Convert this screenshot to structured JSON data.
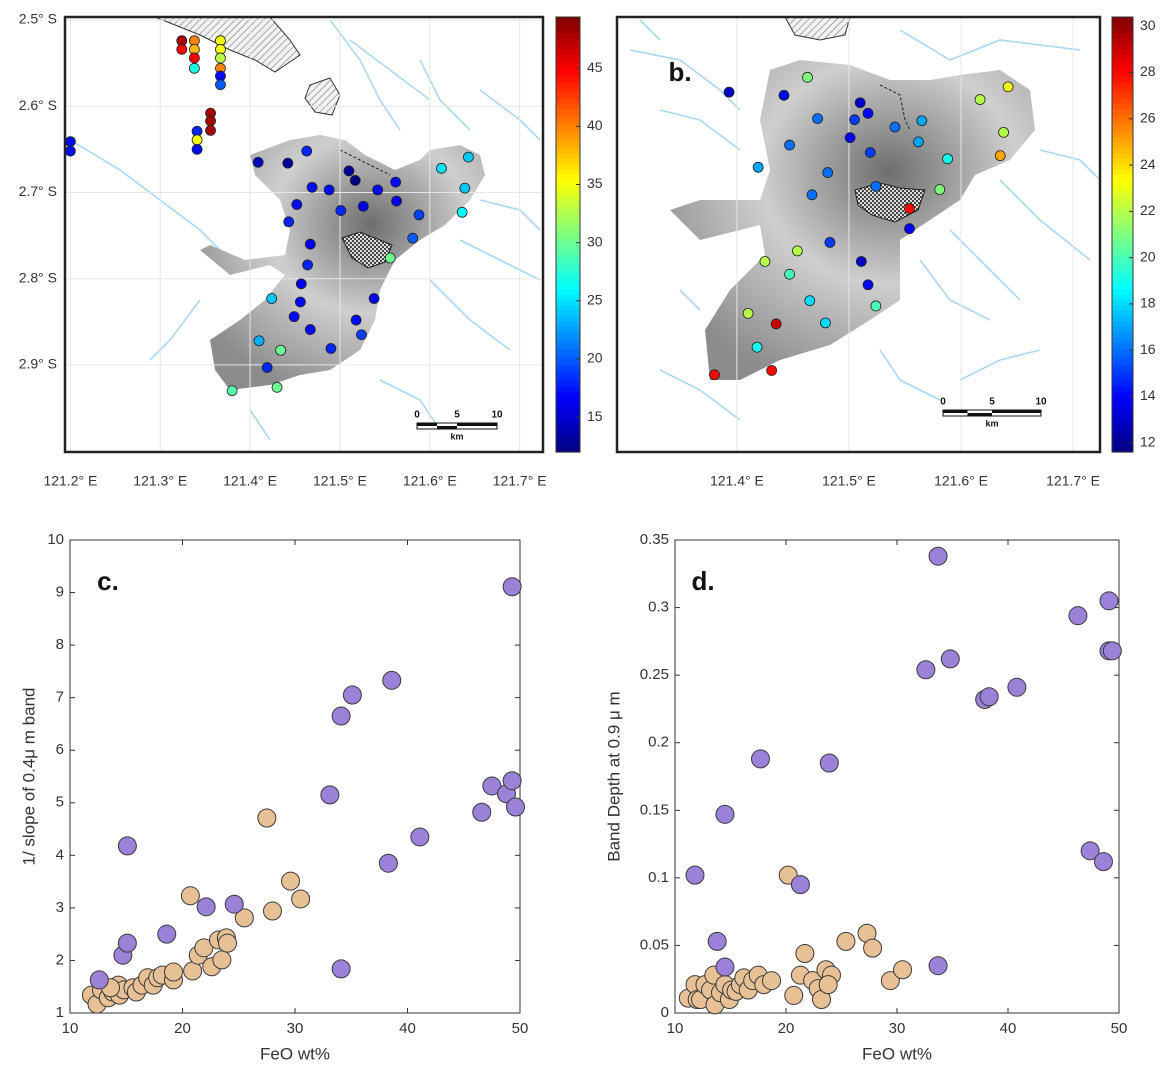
{
  "chart_data": [
    {
      "type": "map",
      "colormap": "jet",
      "grid": true,
      "xlim": [
        121.194,
        121.726
      ],
      "ylim": [
        -3.001,
        -2.4965
      ],
      "xticks": [
        {
          "value": 121.2,
          "label": "121.2° E"
        },
        {
          "value": 121.3,
          "label": "121.3° E"
        },
        {
          "value": 121.4,
          "label": "121.4° E"
        },
        {
          "value": 121.5,
          "label": "121.5° E"
        },
        {
          "value": 121.6,
          "label": "121.6° E"
        },
        {
          "value": 121.7,
          "label": "121.7° E"
        }
      ],
      "yticks": [
        {
          "value": -2.5,
          "label": "2.5° S"
        },
        {
          "value": -2.6,
          "label": "2.6° S"
        },
        {
          "value": -2.7,
          "label": "2.7° S"
        },
        {
          "value": -2.8,
          "label": "2.8° S"
        },
        {
          "value": -2.9,
          "label": "2.9° S"
        }
      ],
      "clim": [
        12,
        49.4
      ],
      "cticks": [
        15,
        20,
        25,
        30,
        35,
        40,
        45
      ],
      "scale_bar": {
        "ticks": [
          0,
          5,
          10
        ],
        "unit": "km"
      },
      "x": [
        121.324,
        121.324,
        121.338,
        121.338,
        121.338,
        121.338,
        121.367,
        121.367,
        121.367,
        121.367,
        121.367,
        121.367,
        121.356,
        121.356,
        121.356,
        121.341,
        121.341,
        121.341,
        121.2,
        121.2,
        121.409,
        121.442,
        121.463,
        121.51,
        121.517,
        121.542,
        121.562,
        121.563,
        121.613,
        121.643,
        121.639,
        121.636,
        121.588,
        121.581,
        121.556,
        121.526,
        121.501,
        121.488,
        121.469,
        121.452,
        121.443,
        121.467,
        121.464,
        121.457,
        121.424,
        121.456,
        121.449,
        121.518,
        121.538,
        121.524,
        121.467,
        121.49,
        121.41,
        121.434,
        121.419,
        121.43,
        121.38
      ],
      "y": [
        -2.524,
        -2.534,
        -2.524,
        -2.534,
        -2.544,
        -2.556,
        -2.524,
        -2.534,
        -2.544,
        -2.556,
        -2.565,
        -2.575,
        -2.608,
        -2.617,
        -2.628,
        -2.629,
        -2.639,
        -2.65,
        -2.641,
        -2.652,
        -2.665,
        -2.666,
        -2.652,
        -2.675,
        -2.686,
        -2.697,
        -2.688,
        -2.71,
        -2.672,
        -2.659,
        -2.695,
        -2.723,
        -2.726,
        -2.753,
        -2.776,
        -2.716,
        -2.721,
        -2.697,
        -2.694,
        -2.714,
        -2.734,
        -2.76,
        -2.784,
        -2.806,
        -2.823,
        -2.827,
        -2.844,
        -2.848,
        -2.823,
        -2.865,
        -2.859,
        -2.881,
        -2.872,
        -2.883,
        -2.903,
        -2.926,
        -2.93
      ],
      "values": [
        48,
        45,
        40,
        38,
        45,
        27,
        35,
        35,
        33,
        40,
        17,
        20,
        48,
        48,
        48,
        18,
        35,
        17,
        17,
        17,
        14,
        13,
        18,
        13,
        12,
        17,
        17,
        16,
        25,
        24,
        24,
        26,
        19,
        20,
        30,
        16,
        18,
        17,
        17,
        17,
        18,
        16,
        18,
        16,
        24,
        17,
        17,
        17,
        16,
        19,
        17,
        18,
        23,
        30,
        18,
        30,
        29
      ]
    },
    {
      "type": "map",
      "colormap": "jet",
      "grid": true,
      "panel_label": "b.",
      "xlim": [
        121.293,
        121.724
      ],
      "ylim": [
        -3.006,
        -2.595
      ],
      "xticks": [
        {
          "value": 121.4,
          "label": "121.4° E"
        },
        {
          "value": 121.5,
          "label": "121.5° E"
        },
        {
          "value": 121.6,
          "label": "121.6° E"
        },
        {
          "value": 121.7,
          "label": "121.7° E"
        }
      ],
      "clim": [
        11.6,
        30.4
      ],
      "cticks": [
        12,
        14,
        16,
        18,
        20,
        22,
        24,
        26,
        28,
        30
      ],
      "scale_bar": {
        "ticks": [
          0,
          5,
          10
        ],
        "unit": "km"
      },
      "x": [
        121.393,
        121.442,
        121.463,
        121.447,
        121.472,
        121.51,
        121.517,
        121.505,
        121.501,
        121.519,
        121.541,
        121.565,
        121.562,
        121.588,
        121.617,
        121.642,
        121.638,
        121.635,
        121.581,
        121.554,
        121.554,
        121.524,
        121.481,
        121.467,
        121.419,
        121.483,
        121.454,
        121.425,
        121.447,
        121.511,
        121.517,
        121.524,
        121.465,
        121.479,
        121.435,
        121.41,
        121.418,
        121.431,
        121.38
      ],
      "y": [
        -2.666,
        -2.669,
        -2.652,
        -2.716,
        -2.691,
        -2.676,
        -2.686,
        -2.692,
        -2.709,
        -2.723,
        -2.699,
        -2.693,
        -2.713,
        -2.729,
        -2.673,
        -2.661,
        -2.704,
        -2.726,
        -2.758,
        -2.776,
        -2.795,
        -2.755,
        -2.742,
        -2.763,
        -2.737,
        -2.808,
        -2.816,
        -2.826,
        -2.838,
        -2.826,
        -2.848,
        -2.868,
        -2.863,
        -2.884,
        -2.885,
        -2.875,
        -2.907,
        -2.929,
        -2.933
      ],
      "values": [
        13,
        14,
        21,
        16,
        16,
        13,
        14,
        15,
        14,
        15,
        16,
        17,
        17,
        19,
        22,
        23,
        22,
        25,
        21,
        28,
        14,
        16,
        16,
        16,
        17,
        15,
        22,
        22,
        20,
        13,
        14,
        20,
        18,
        18,
        29,
        22,
        19,
        28,
        28
      ]
    },
    {
      "type": "scatter",
      "panel_label": "c.",
      "xlabel": "FeO wt%",
      "ylabel": "1/ slope of 0.4μ m band",
      "xlim": [
        10,
        50
      ],
      "ylim": [
        1,
        10
      ],
      "xticks": [
        10,
        20,
        30,
        40,
        50
      ],
      "yticks": [
        1,
        2,
        3,
        4,
        5,
        6,
        7,
        8,
        9,
        10
      ],
      "series": [
        {
          "color": "#e8c096",
          "x": [
            11.9,
            12.4,
            12.8,
            13.4,
            13.8,
            14.3,
            14.4,
            14.8,
            15.6,
            15.9,
            16.4,
            16.9,
            17.4,
            17.8,
            18.2,
            19.2,
            19.2,
            20.7,
            20.9,
            21.4,
            21.9,
            22.6,
            23.2,
            23.5,
            23.9,
            24,
            25.5,
            27.5,
            28,
            29.6,
            30.5,
            13.6
          ],
          "y": [
            1.34,
            1.17,
            1.44,
            1.29,
            1.4,
            1.53,
            1.34,
            1.44,
            1.48,
            1.4,
            1.53,
            1.67,
            1.53,
            1.67,
            1.72,
            1.63,
            1.78,
            3.23,
            1.8,
            2.1,
            2.24,
            1.88,
            2.39,
            2.01,
            2.43,
            2.33,
            2.81,
            4.71,
            2.94,
            3.51,
            3.17,
            1.48
          ]
        },
        {
          "color": "#9b82d8",
          "x": [
            12.6,
            14.7,
            15.1,
            15.1,
            18.6,
            22.1,
            24.6,
            33.1,
            34.1,
            35.1,
            38.6,
            38.3,
            41.1,
            34.1,
            46.6,
            47.5,
            48.8,
            49.3,
            49.6,
            49.3
          ],
          "y": [
            1.63,
            2.1,
            2.33,
            4.18,
            2.5,
            3.02,
            3.07,
            5.15,
            6.65,
            7.05,
            7.33,
            3.85,
            4.35,
            1.84,
            4.82,
            5.32,
            5.17,
            5.42,
            4.92,
            9.11
          ]
        }
      ]
    },
    {
      "type": "scatter",
      "panel_label": "d.",
      "xlabel": "FeO wt%",
      "ylabel": "Band Depth at 0.9 μ m",
      "xlim": [
        10,
        50
      ],
      "ylim": [
        0,
        0.35
      ],
      "xticks": [
        10,
        20,
        30,
        40,
        50
      ],
      "yticks": [
        0,
        0.05,
        0.1,
        0.15,
        0.2,
        0.25,
        0.3,
        0.35
      ],
      "series": [
        {
          "color": "#e8c096",
          "x": [
            11.2,
            11.8,
            12.0,
            12.3,
            12.7,
            13.2,
            13.5,
            13.6,
            14.1,
            14.5,
            14.9,
            15.1,
            15.5,
            15.9,
            16.2,
            16.6,
            17.0,
            17.5,
            18.0,
            18.7,
            20.2,
            20.7,
            21.3,
            21.7,
            22.4,
            22.9,
            23.2,
            23.6,
            24.1,
            25.4,
            27.3,
            27.8,
            29.4,
            30.5,
            23.8
          ],
          "y": [
            0.011,
            0.021,
            0.01,
            0.01,
            0.021,
            0.017,
            0.028,
            0.006,
            0.015,
            0.021,
            0.01,
            0.017,
            0.016,
            0.021,
            0.026,
            0.017,
            0.024,
            0.028,
            0.021,
            0.024,
            0.102,
            0.013,
            0.028,
            0.044,
            0.024,
            0.018,
            0.01,
            0.032,
            0.028,
            0.053,
            0.059,
            0.048,
            0.024,
            0.032,
            0.021
          ]
        },
        {
          "color": "#9b82d8",
          "x": [
            11.8,
            13.8,
            14.5,
            14.5,
            17.7,
            21.3,
            23.9,
            32.6,
            33.7,
            33.7,
            34.8,
            37.9,
            38.3,
            40.8,
            46.3,
            47.4,
            48.6,
            49.1,
            49.1,
            49.4
          ],
          "y": [
            0.102,
            0.053,
            0.034,
            0.147,
            0.188,
            0.095,
            0.185,
            0.254,
            0.338,
            0.035,
            0.262,
            0.232,
            0.234,
            0.241,
            0.294,
            0.12,
            0.112,
            0.305,
            0.268,
            0.268
          ]
        }
      ]
    }
  ]
}
